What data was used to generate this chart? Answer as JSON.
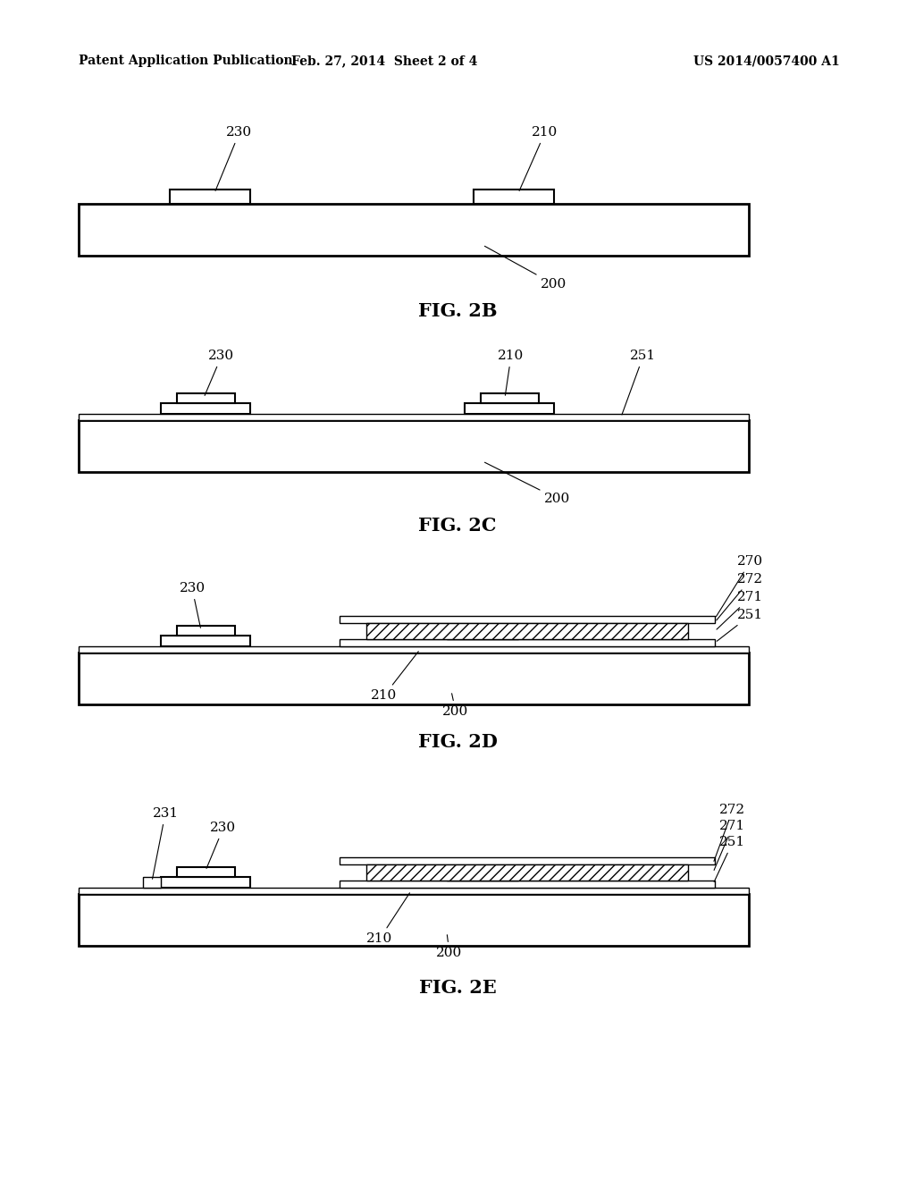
{
  "bg_color": "#ffffff",
  "header_left": "Patent Application Publication",
  "header_mid": "Feb. 27, 2014  Sheet 2 of 4",
  "header_right": "US 2014/0057400 A1"
}
